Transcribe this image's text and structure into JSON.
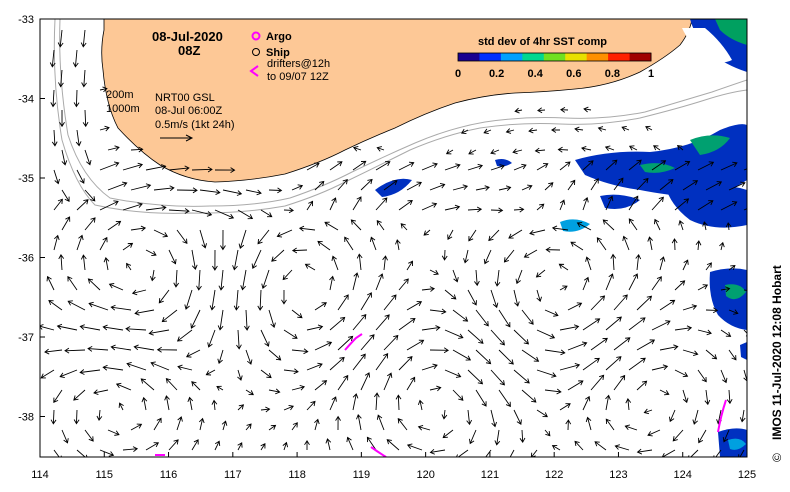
{
  "map": {
    "date": "08-Jul-2020",
    "time": "08Z",
    "legend": {
      "argo_label": "Argo",
      "ship_label": "Ship",
      "drifters_line1": "drifters@12h",
      "drifters_line2": "to 09/07 12Z"
    },
    "colorbar": {
      "title": "std dev of 4hr SST comp",
      "tick_labels": [
        "0",
        "0.2",
        "0.4",
        "0.6",
        "0.8",
        "1"
      ],
      "colors": [
        "#1a0090",
        "#0030ff",
        "#00a0ff",
        "#00d890",
        "#70e020",
        "#e8e000",
        "#ff9000",
        "#ff2000",
        "#a00000"
      ]
    },
    "info": {
      "contour1": "200m",
      "contour2": "1000m",
      "model": "NRT00 GSL",
      "model_time": "08-Jul 06:00Z",
      "scale": "0.5m/s (1kt 24h)"
    },
    "lon_ticks": [
      "114",
      "115",
      "116",
      "117",
      "118",
      "119",
      "120",
      "121",
      "122",
      "123",
      "124",
      "125"
    ],
    "lat_ticks": [
      "-33",
      "-34",
      "-35",
      "-36",
      "-37",
      "-38"
    ],
    "credit": "IMOS 11-Jul-2020 12:08 Hobart",
    "copyright_symbol": "©",
    "colors": {
      "land": "#fdc896",
      "argo": "#ff00ff",
      "contour": "#aaaaaa"
    }
  }
}
